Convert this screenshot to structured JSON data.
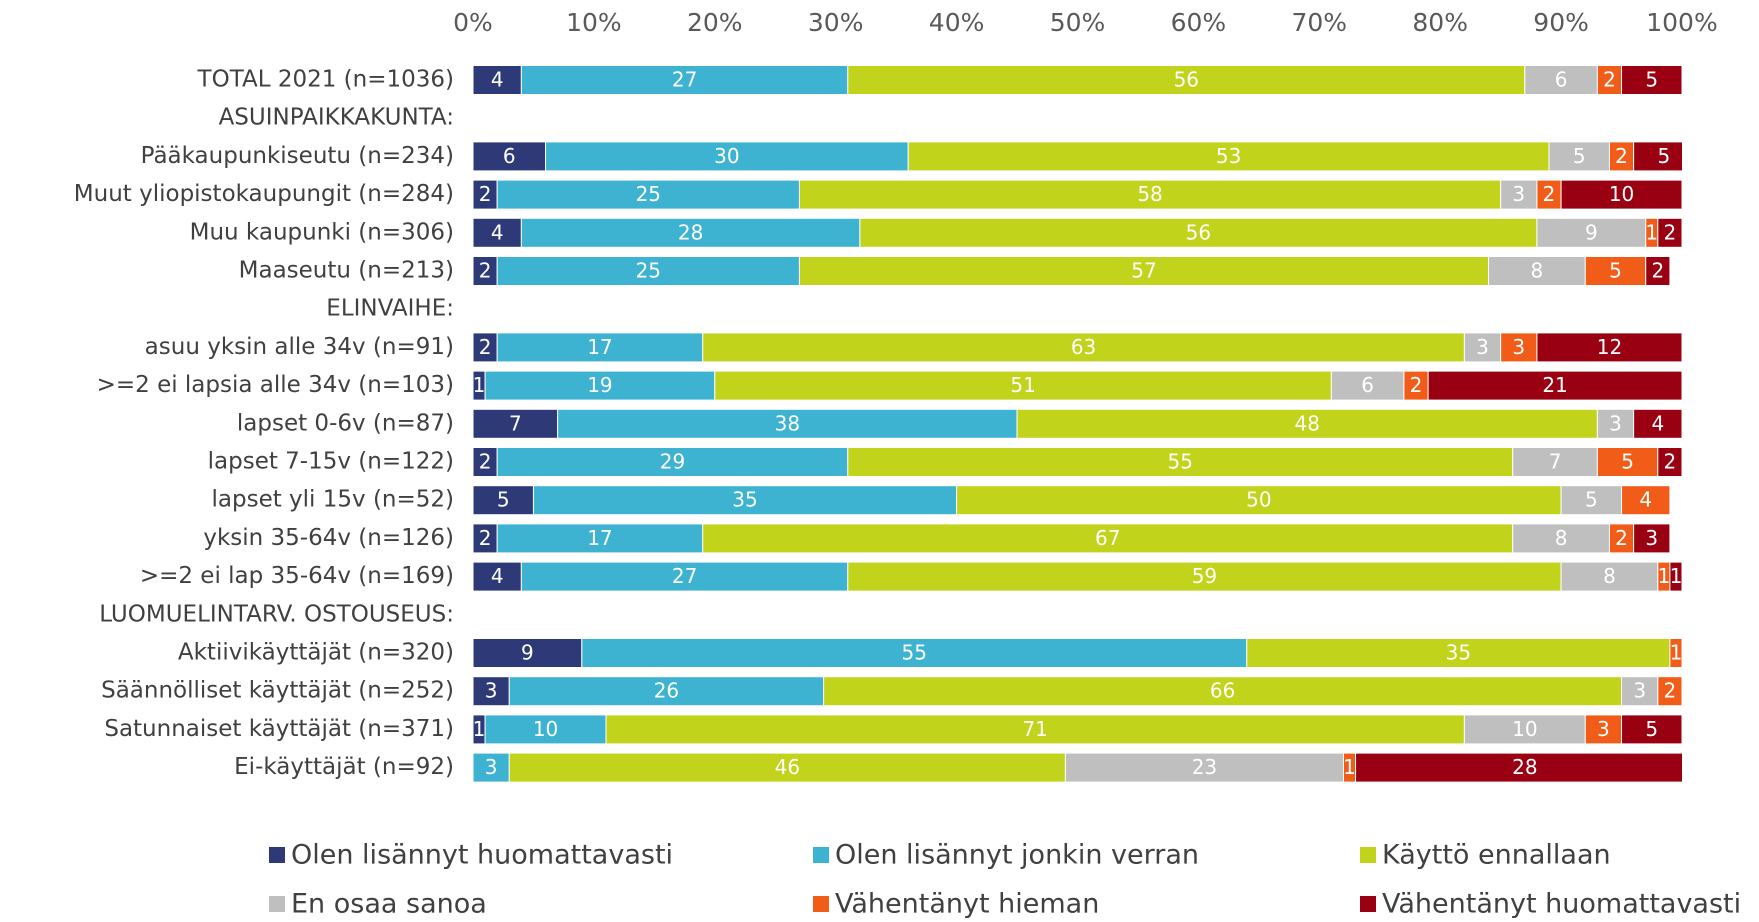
{
  "chart_data": {
    "type": "stacked_barh",
    "categories": [
      "TOTAL 2021 (n=1036)",
      "ASUINPAIKKAKUNTA:",
      "Pääkaupunkiseutu (n=234)",
      "Muut yliopistokaupungit (n=284)",
      "Muu kaupunki (n=306)",
      "Maaseutu (n=213)",
      "ELINVAIHE:",
      "asuu yksin alle 34v (n=91)",
      ">=2 ei lapsia alle 34v (n=103)",
      "lapset 0-6v (n=87)",
      "lapset 7-15v (n=122)",
      "lapset yli 15v (n=52)",
      "yksin 35-64v (n=126)",
      ">=2 ei lap 35-64v (n=169)",
      "LUOMUELINTARV. OSTOUSEUS:",
      "Aktiivikäyttäjät (n=320)",
      "Säännölliset käyttäjät (n=252)",
      "Satunnaiset käyttäjät (n=371)",
      "Ei-käyttäjät (n=92)"
    ],
    "series": [
      {
        "name": "Olen lisännyt huomattavasti",
        "color": "#2e3a78",
        "values": [
          4,
          null,
          6,
          2,
          4,
          2,
          null,
          2,
          1,
          7,
          2,
          5,
          2,
          4,
          null,
          9,
          3,
          1,
          0
        ]
      },
      {
        "name": "Olen lisännyt jonkin verran",
        "color": "#3db3d1",
        "values": [
          27,
          null,
          30,
          25,
          28,
          25,
          null,
          17,
          19,
          38,
          29,
          35,
          17,
          27,
          null,
          55,
          26,
          10,
          3
        ]
      },
      {
        "name": "Käyttö ennallaan",
        "color": "#c2d31b",
        "values": [
          56,
          null,
          53,
          58,
          56,
          57,
          null,
          63,
          51,
          48,
          55,
          50,
          67,
          59,
          null,
          35,
          66,
          71,
          46
        ]
      },
      {
        "name": "En osaa sanoa",
        "color": "#bfbfbf",
        "values": [
          6,
          null,
          5,
          3,
          9,
          8,
          null,
          3,
          6,
          3,
          7,
          5,
          8,
          8,
          null,
          0,
          3,
          10,
          23
        ]
      },
      {
        "name": "Vähentänyt hieman",
        "color": "#f25c19",
        "values": [
          2,
          null,
          2,
          2,
          1,
          5,
          null,
          3,
          2,
          0,
          5,
          4,
          2,
          1,
          null,
          1,
          2,
          3,
          1
        ]
      },
      {
        "name": "Vähentänyt huomattavasti",
        "color": "#990012",
        "values": [
          5,
          null,
          5,
          10,
          2,
          2,
          null,
          12,
          21,
          4,
          2,
          0,
          3,
          1,
          null,
          1,
          0,
          5,
          28
        ]
      }
    ],
    "xlim": [
      0,
      100
    ],
    "xticks": [
      {
        "value": 0,
        "label": "0%"
      },
      {
        "value": 10,
        "label": "10%"
      },
      {
        "value": 20,
        "label": "20%"
      },
      {
        "value": 30,
        "label": "30%"
      },
      {
        "value": 40,
        "label": "40%"
      },
      {
        "value": 50,
        "label": "50%"
      },
      {
        "value": 60,
        "label": "60%"
      },
      {
        "value": 70,
        "label": "70%"
      },
      {
        "value": 80,
        "label": "80%"
      },
      {
        "value": 90,
        "label": "90%"
      },
      {
        "value": 100,
        "label": "100%"
      }
    ],
    "grid": false,
    "legend": "bottom"
  }
}
